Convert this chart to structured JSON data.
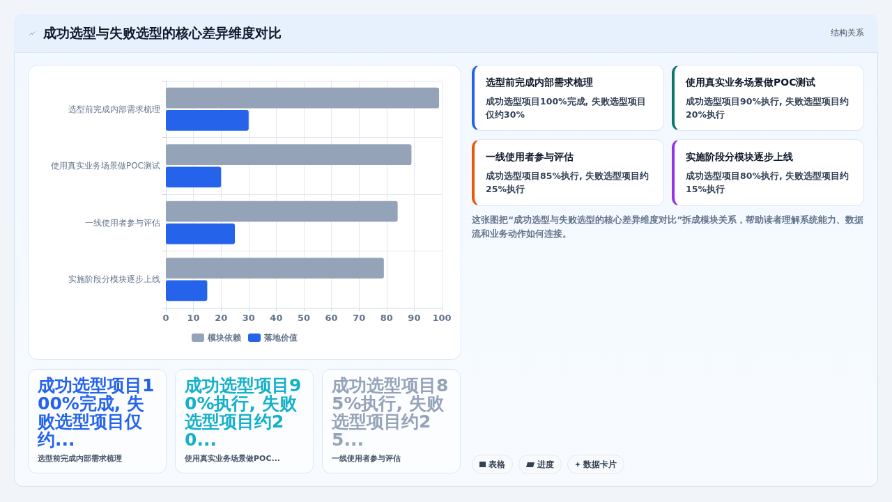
{
  "chart_data": [
    {
      "type": "other",
      "title": "成功选型与失败选型的核心差异维度对比",
      "annotations": [
        "结构关系"
      ]
    },
    {
      "type": "bar",
      "orientation": "horizontal",
      "categories": [
        "选型前完成内部需求梳理",
        "使用真实业务场景做POC测试",
        "一线使用者参与评估",
        "实施阶段分模块逐步上线"
      ],
      "series": [
        {
          "name": "模块依赖",
          "color": "#94a3b8",
          "values": [
            99,
            89,
            84,
            79
          ]
        },
        {
          "name": "落地价值",
          "color": "#2563eb",
          "values": [
            30,
            20,
            25,
            15
          ]
        }
      ],
      "xlim": [
        0,
        100
      ],
      "xticks": [
        0,
        10,
        20,
        30,
        40,
        50,
        60,
        70,
        80,
        90,
        100
      ],
      "grid": true,
      "legend": "bottom"
    },
    {
      "type": "other",
      "title": "选型前完成内部需求梳理",
      "color": "#2563eb",
      "annotations": [
        "成功选型项目100%完成, 失败选型项目仅约30%"
      ]
    },
    {
      "type": "other",
      "title": "使用真实业务场景做POC测试",
      "color": "#0f766e",
      "annotations": [
        "成功选型项目90%执行, 失败选型项目约20%执行"
      ]
    },
    {
      "type": "other",
      "title": "一线使用者参与评估",
      "color": "#ea580c",
      "annotations": [
        "成功选型项目85%执行, 失败选型项目约25%执行"
      ]
    },
    {
      "type": "other",
      "title": "实施阶段分模块逐步上线",
      "color": "#9333ea",
      "annotations": [
        "成功选型项目80%执行, 失败选型项目约15%执行"
      ]
    },
    {
      "type": "other",
      "annotations": [
        "这张图把“成功选型与失败选型的核心差异维度对比”拆成模块关系，帮助读者理解系统能力、数据流和业务动作如何连接。"
      ]
    },
    {
      "type": "other",
      "title": "成功选型项目100%完成, 失败选型项目仅约...",
      "color": "#2563eb",
      "annotations": [
        "选型前完成内部需求梳理"
      ]
    },
    {
      "type": "other",
      "title": "成功选型项目90%执行, 失败选型项目约20...",
      "color": "#14b0c8",
      "annotations": [
        "使用真实业务场景做POC..."
      ]
    },
    {
      "type": "other",
      "title": "成功选型项目85%执行, 失败选型项目约25...",
      "color": "#94a3b8",
      "annotations": [
        "一线使用者参与评估"
      ]
    },
    {
      "type": "other",
      "annotations": [
        "表格",
        "进度",
        "数据卡片"
      ]
    }
  ]
}
